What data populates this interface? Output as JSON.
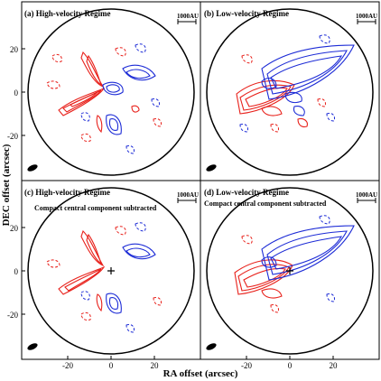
{
  "figure": {
    "xlabel": "RA offset (arcsec)",
    "ylabel": "DEC offset (arcsec)",
    "x_ticks": [
      -20,
      0,
      20
    ],
    "y_ticks": [
      20,
      0,
      -20
    ],
    "scale_bar_label": "1000AU"
  },
  "panels": [
    {
      "id": "a",
      "title": "(a) High-velocity Regime",
      "subtitle": "",
      "regime": "high"
    },
    {
      "id": "b",
      "title": "(b) Low-velocity Regime",
      "subtitle": "",
      "regime": "low"
    },
    {
      "id": "c",
      "title": "(c) High-velocity Regime",
      "subtitle": "Compact central component subtracted",
      "regime": "high"
    },
    {
      "id": "d",
      "title": "(d) Low-velocity Regime",
      "subtitle": "Compact central component subtracted",
      "regime": "low"
    }
  ],
  "colors": {
    "redshifted": "#e8211b",
    "blueshifted": "#1c2bd6",
    "frame": "#000000"
  }
}
